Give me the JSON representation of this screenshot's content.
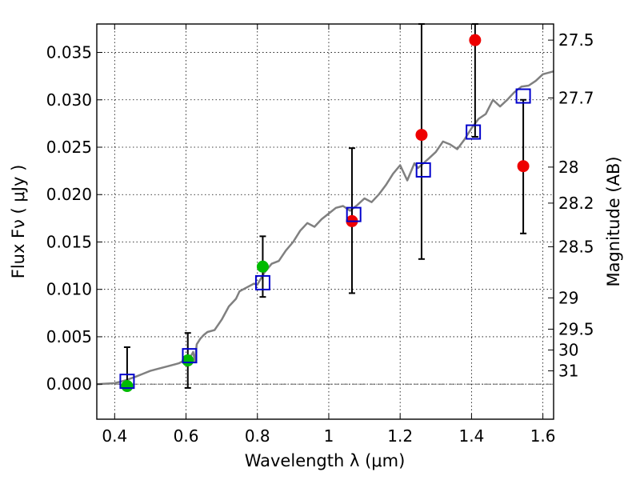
{
  "chart_data": {
    "type": "scatter",
    "title": "",
    "xlabel": "Wavelength  λ (μm)",
    "ylabel": "Flux  Fν  ( μJy )",
    "ylabel_right": "Magnitude (AB)",
    "xlim": [
      0.35,
      1.63
    ],
    "ylim": [
      -0.0037,
      0.038
    ],
    "grid": true,
    "x_ticks": [
      0.4,
      0.6,
      0.8,
      1.0,
      1.2,
      1.4,
      1.6
    ],
    "x_tick_labels": [
      "0.4",
      "0.6",
      "0.8",
      "1",
      "1.2",
      "1.4",
      "1.6"
    ],
    "y_ticks": [
      0.0,
      0.005,
      0.01,
      0.015,
      0.02,
      0.025,
      0.03,
      0.035
    ],
    "y_tick_labels": [
      "0.000",
      "0.005",
      "0.010",
      "0.015",
      "0.020",
      "0.025",
      "0.030",
      "0.035"
    ],
    "right_ticks": [
      {
        "label": "27.5",
        "flux": 0.0363
      },
      {
        "label": "27.7",
        "flux": 0.0302
      },
      {
        "label": "28",
        "flux": 0.0229
      },
      {
        "label": "28.2",
        "flux": 0.0191
      },
      {
        "label": "28.5",
        "flux": 0.0145
      },
      {
        "label": "29",
        "flux": 0.0091
      },
      {
        "label": "29.5",
        "flux": 0.0058
      },
      {
        "label": "30",
        "flux": 0.0036
      },
      {
        "label": "31",
        "flux": 0.0014
      }
    ],
    "zero_line": 0.0,
    "series": [
      {
        "kind": "line",
        "color": "#808080",
        "x": [
          0.35,
          0.4,
          0.43,
          0.46,
          0.48,
          0.5,
          0.52,
          0.55,
          0.57,
          0.58,
          0.59,
          0.6,
          0.61,
          0.62,
          0.625,
          0.63,
          0.64,
          0.65,
          0.66,
          0.68,
          0.7,
          0.72,
          0.74,
          0.75,
          0.77,
          0.79,
          0.8,
          0.82,
          0.84,
          0.86,
          0.88,
          0.9,
          0.92,
          0.94,
          0.96,
          0.98,
          1.0,
          1.02,
          1.04,
          1.06,
          1.08,
          1.1,
          1.12,
          1.14,
          1.16,
          1.18,
          1.2,
          1.22,
          1.24,
          1.25,
          1.28,
          1.3,
          1.32,
          1.34,
          1.36,
          1.38,
          1.4,
          1.42,
          1.44,
          1.46,
          1.48,
          1.5,
          1.52,
          1.54,
          1.56,
          1.58,
          1.6,
          1.63
        ],
        "y": [
          0.0,
          0.0001,
          0.0004,
          0.0008,
          0.0011,
          0.0014,
          0.0016,
          0.0019,
          0.0021,
          0.0022,
          0.0024,
          0.0025,
          0.0027,
          0.0034,
          0.0024,
          0.0042,
          0.0048,
          0.0052,
          0.0055,
          0.0057,
          0.0068,
          0.0082,
          0.009,
          0.0098,
          0.0102,
          0.0106,
          0.0105,
          0.0118,
          0.0127,
          0.013,
          0.0141,
          0.015,
          0.0162,
          0.017,
          0.0166,
          0.0174,
          0.018,
          0.0186,
          0.0188,
          0.0183,
          0.0189,
          0.0196,
          0.0192,
          0.02,
          0.021,
          0.0222,
          0.0231,
          0.0215,
          0.0233,
          0.0228,
          0.0238,
          0.0245,
          0.0256,
          0.0253,
          0.0248,
          0.0258,
          0.027,
          0.028,
          0.0285,
          0.03,
          0.0293,
          0.03,
          0.0308,
          0.0314,
          0.0315,
          0.032,
          0.0327,
          0.033
        ]
      },
      {
        "kind": "points",
        "marker": "circle",
        "color": "#00bb00",
        "x": [
          0.435,
          0.605,
          0.815
        ],
        "y": [
          -0.0002,
          0.0025,
          0.0124
        ],
        "yerr_low": [
          -0.0002,
          -0.0004,
          0.0092
        ],
        "yerr_high": [
          0.0039,
          0.0054,
          0.0156
        ]
      },
      {
        "kind": "points",
        "marker": "circle",
        "color": "#ee0000",
        "x": [
          1.065,
          1.26,
          1.41,
          1.545
        ],
        "y": [
          0.0172,
          0.0263,
          0.0363,
          0.023
        ],
        "yerr_low": [
          0.0096,
          0.0132,
          0.0261,
          0.0159
        ],
        "yerr_high": [
          0.0249,
          0.038,
          0.038,
          0.03
        ]
      },
      {
        "kind": "points",
        "marker": "square",
        "color": "#0000cc",
        "x": [
          0.435,
          0.61,
          0.815,
          1.07,
          1.265,
          1.405,
          1.545
        ],
        "y": [
          0.0003,
          0.003,
          0.0107,
          0.0179,
          0.0226,
          0.0266,
          0.0304
        ]
      }
    ]
  }
}
